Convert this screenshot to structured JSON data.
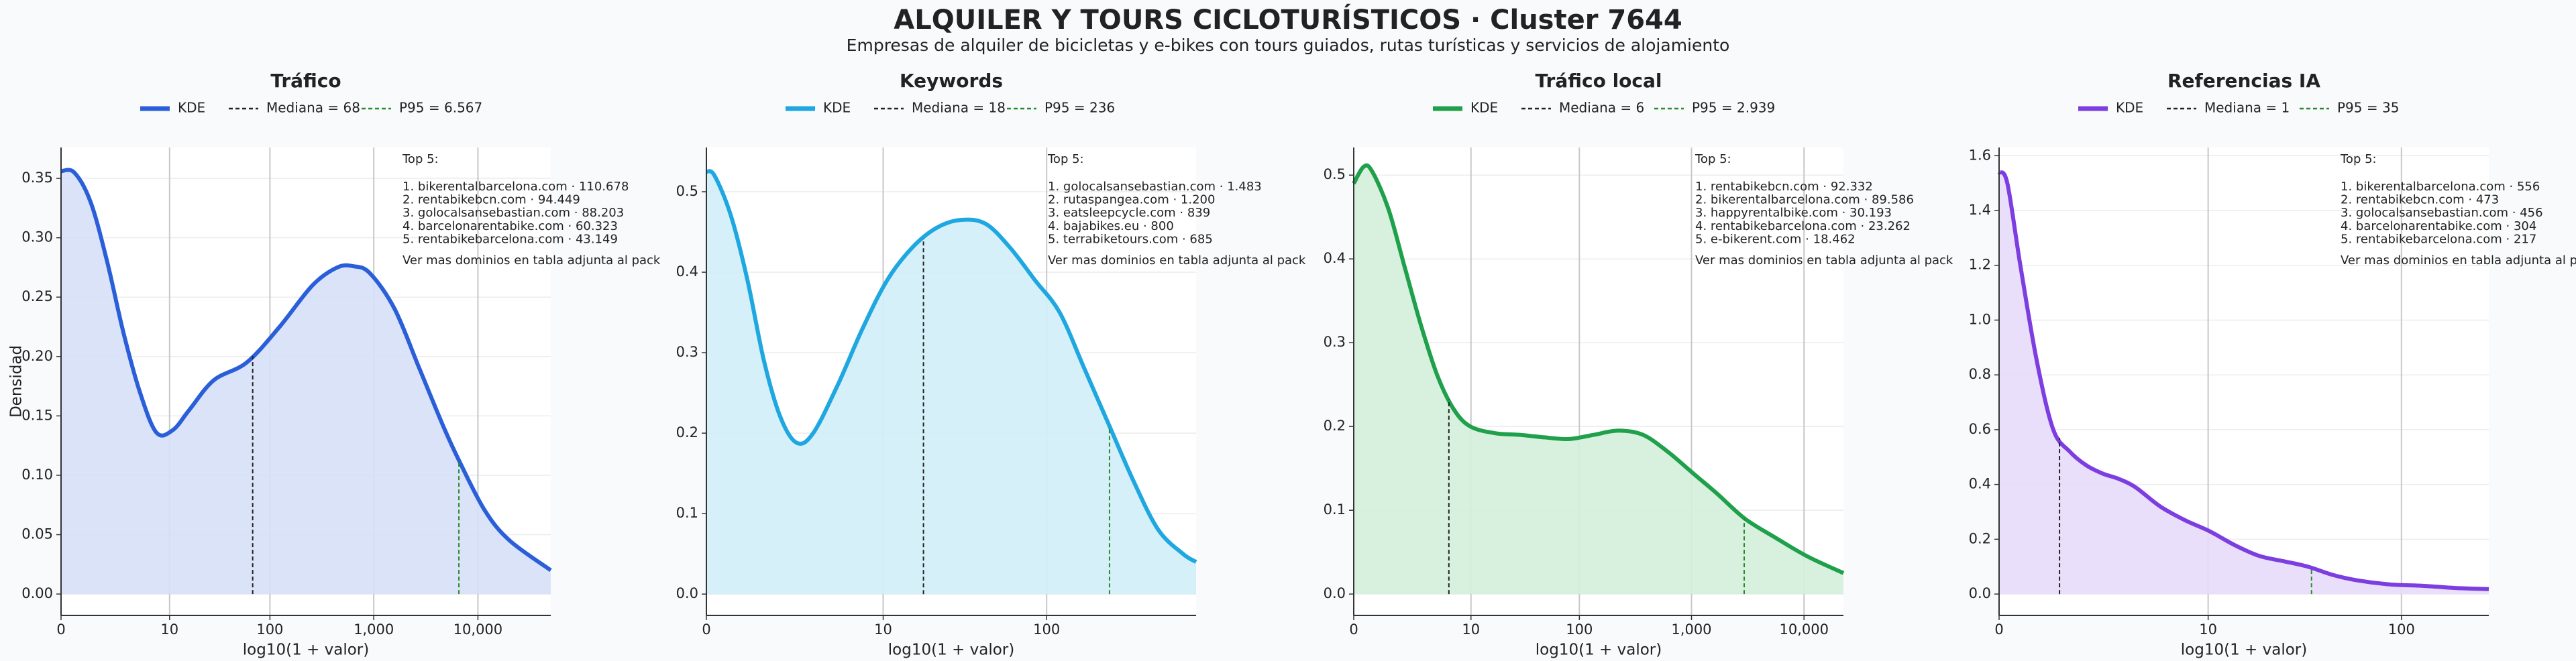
{
  "header": {
    "title": "ALQUILER Y TOURS CICLOTURÍSTICOS · Cluster 7644",
    "subtitle": "Empresas de alquiler de bicicletas y e‑bikes con tours guiados, rutas turísticas y servicios de alojamiento"
  },
  "chart_data": [
    {
      "type": "kde",
      "title": "Tráfico",
      "xlabel": "log10(1 + valor)",
      "ylabel": "Densidad",
      "xscale": "log1p",
      "grid": true,
      "xlim": [
        0,
        50000
      ],
      "ylim": [
        -0.018,
        0.376
      ],
      "xticks": [
        0,
        10,
        100,
        {
          "value": 1000,
          "label": "1,000"
        },
        {
          "value": 10000,
          "label": "10,000"
        }
      ],
      "yticks": [
        {
          "value": 0,
          "label": "0.00"
        },
        0.05,
        {
          "value": 0.1,
          "label": "0.10"
        },
        0.15,
        {
          "value": 0.2,
          "label": "0.20"
        },
        0.25,
        {
          "value": 0.3,
          "label": "0.30"
        },
        0.35
      ],
      "x": [
        0,
        0.337,
        0.923,
        1.767,
        2.972,
        4.71,
        7.22,
        10.8,
        16.0,
        28.2,
        59.5,
        124,
        258,
        446,
        640,
        922,
        1588,
        2741,
        4720,
        6791,
        11720,
        20180,
        50000
      ],
      "series": [
        {
          "name": "KDE",
          "color": "#2b5fd9",
          "fill": "#d6e0f7",
          "values": [
            0.356,
            0.355,
            0.33,
            0.28,
            0.22,
            0.17,
            0.136,
            0.138,
            0.155,
            0.18,
            0.195,
            0.225,
            0.26,
            0.275,
            0.276,
            0.27,
            0.24,
            0.19,
            0.14,
            0.11,
            0.07,
            0.045,
            0.02
          ]
        }
      ],
      "median": {
        "name": "Mediana = 68",
        "value": 68,
        "color": "#222222"
      },
      "p95": {
        "name": "P95 = 6.567",
        "value": 6567,
        "color": "#2a8a2a"
      },
      "annotation": {
        "heading": "Top 5:",
        "items": [
          "1. bikerentalbarcelona.com · 110.678",
          "2. rentabikebcn.com · 94.449",
          "3. golocalsansebastian.com · 88.203",
          "4. barcelonarentabike.com · 60.323",
          "5. rentabikebarcelona.com · 43.149"
        ],
        "footer": "Ver mas dominios en tabla adjunta al pack"
      }
    },
    {
      "type": "kde",
      "title": "Keywords",
      "xlabel": "log10(1 + valor)",
      "xscale": "log1p",
      "grid": true,
      "xlim": [
        0,
        766
      ],
      "ylim": [
        -0.0265,
        0.555
      ],
      "xticks": [
        0,
        10,
        100
      ],
      "yticks": [
        {
          "value": 0,
          "label": "0.0"
        },
        0.1,
        0.2,
        0.3,
        0.4,
        0.5
      ],
      "x": [
        0,
        0.117,
        0.396,
        0.746,
        1.183,
        1.729,
        2.404,
        3.256,
        4.943,
        7.318,
        10.61,
        15.22,
        21.65,
        30.62,
        43.26,
        60.8,
        85.3,
        119.5,
        167.7,
        234.5,
        328,
        458,
        641,
        766
      ],
      "series": [
        {
          "name": "KDE",
          "color": "#1ea7e0",
          "fill": "#d2eefa",
          "values": [
            0.525,
            0.52,
            0.47,
            0.39,
            0.29,
            0.22,
            0.188,
            0.2,
            0.26,
            0.33,
            0.39,
            0.43,
            0.455,
            0.465,
            0.46,
            0.43,
            0.39,
            0.35,
            0.28,
            0.21,
            0.14,
            0.08,
            0.05,
            0.04
          ]
        }
      ],
      "median": {
        "name": "Mediana = 18",
        "value": 18,
        "color": "#222222"
      },
      "p95": {
        "name": "P95 = 236",
        "value": 236,
        "color": "#2a8a2a"
      },
      "annotation": {
        "heading": "Top 5:",
        "items": [
          "1. golocalsansebastian.com · 1.483",
          "2. rutaspangea.com · 1.200",
          "3. eatsleepcycle.com · 839",
          "4. bajabikes.eu · 800",
          "5. terrabiketours.com · 685"
        ],
        "footer": "Ver mas dominios en tabla adjunta al pack"
      }
    },
    {
      "type": "kde",
      "title": "Tráfico local",
      "xlabel": "log10(1 + valor)",
      "xscale": "log1p",
      "grid": true,
      "xlim": [
        0,
        22400
      ],
      "ylim": [
        -0.0255,
        0.533
      ],
      "xticks": [
        0,
        10,
        100,
        {
          "value": 1000,
          "label": "1,000"
        },
        {
          "value": 10000,
          "label": "10,000"
        }
      ],
      "yticks": [
        {
          "value": 0,
          "label": "0.0"
        },
        0.1,
        0.2,
        0.3,
        0.4,
        0.5
      ],
      "x": [
        0,
        0.225,
        0.449,
        1.028,
        1.838,
        2.972,
        4.559,
        6.78,
        9.86,
        17.0,
        28.8,
        48.3,
        80.7,
        134,
        223,
        370,
        613,
        1015,
        1682,
        2978,
        5458,
        10690,
        22400
      ],
      "series": [
        {
          "name": "KDE",
          "color": "#1fa04a",
          "fill": "#d4efdc",
          "values": [
            0.49,
            0.51,
            0.505,
            0.46,
            0.39,
            0.32,
            0.26,
            0.22,
            0.2,
            0.192,
            0.19,
            0.187,
            0.185,
            0.19,
            0.195,
            0.19,
            0.17,
            0.145,
            0.12,
            0.09,
            0.068,
            0.045,
            0.025
          ]
        }
      ],
      "median": {
        "name": "Mediana = 6",
        "value": 6,
        "color": "#222222"
      },
      "p95": {
        "name": "P95 = 2.939",
        "value": 2939,
        "color": "#2a8a2a"
      },
      "annotation": {
        "heading": "Top 5:",
        "items": [
          "1. rentabikebcn.com · 92.332",
          "2. bikerentalbarcelona.com · 89.586",
          "3. happyrentalbike.com · 30.193",
          "4. rentabikebarcelona.com · 23.262",
          "5. e-bikerent.com · 18.462"
        ],
        "footer": "Ver mas dominios en tabla adjunta al pack"
      }
    },
    {
      "type": "kde",
      "title": "Referencias IA",
      "xlabel": "log10(1 + valor)",
      "xscale": "log1p",
      "grid": true,
      "xlim": [
        0,
        274
      ],
      "ylim": [
        -0.078,
        1.63
      ],
      "xticks": [
        0,
        10,
        100
      ],
      "yticks": [
        {
          "value": 0,
          "label": "0.0"
        },
        0.2,
        0.4,
        0.6,
        0.8,
        {
          "value": 1,
          "label": "1.0"
        },
        1.2,
        1.4,
        1.6
      ],
      "x": [
        0,
        0.099,
        0.276,
        0.542,
        0.862,
        1.249,
        1.716,
        2.273,
        2.954,
        3.775,
        5.34,
        7.41,
        10.14,
        13.79,
        18.63,
        25.06,
        33.5,
        44.8,
        59.8,
        87.7,
        128,
        187,
        274
      ],
      "series": [
        {
          "name": "KDE",
          "color": "#7c3ee0",
          "fill": "#e7dcfa",
          "values": [
            1.54,
            1.5,
            1.2,
            0.85,
            0.6,
            0.52,
            0.47,
            0.44,
            0.42,
            0.39,
            0.32,
            0.27,
            0.23,
            0.18,
            0.14,
            0.12,
            0.1,
            0.07,
            0.05,
            0.035,
            0.03,
            0.022,
            0.018
          ]
        }
      ],
      "median": {
        "name": "Mediana = 1",
        "value": 1,
        "color": "#222222"
      },
      "p95": {
        "name": "P95 = 35",
        "value": 35,
        "color": "#2a8a2a"
      },
      "annotation": {
        "heading": "Top 5:",
        "items": [
          "1. bikerentalbarcelona.com · 556",
          "2. rentabikebcn.com · 473",
          "3. golocalsansebastian.com · 456",
          "4. barcelonarentabike.com · 304",
          "5. rentabikebarcelona.com · 217"
        ],
        "footer": "Ver mas dominios en tabla adjunta al pack"
      }
    }
  ]
}
